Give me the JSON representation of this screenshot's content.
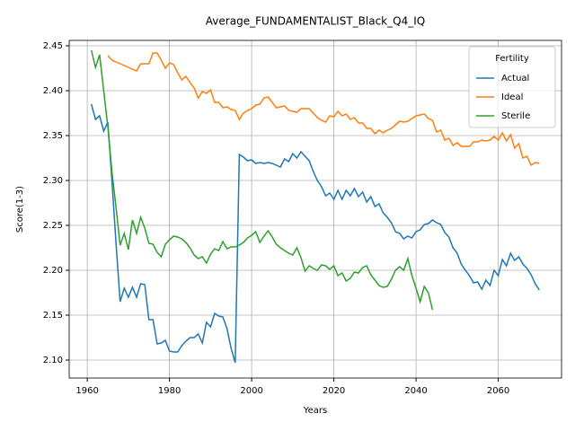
{
  "chart_data": {
    "type": "line",
    "title": "Average_FUNDAMENTALIST_Black_Q4_IQ",
    "xlabel": "Years",
    "ylabel": "Score(1-3)",
    "legend_title": "Fertility",
    "legend": "upper right",
    "grid": true,
    "x": [
      1961,
      1962,
      1963,
      1964,
      1965,
      1966,
      1967,
      1968,
      1969,
      1970,
      1971,
      1972,
      1973,
      1974,
      1975,
      1976,
      1977,
      1978,
      1979,
      1980,
      1981,
      1982,
      1983,
      1984,
      1985,
      1986,
      1987,
      1988,
      1989,
      1990,
      1991,
      1992,
      1993,
      1994,
      1995,
      1996,
      1997,
      1998,
      1999,
      2000,
      2001,
      2002,
      2003,
      2004,
      2005,
      2006,
      2007,
      2008,
      2009,
      2010,
      2011,
      2012,
      2013,
      2014,
      2015,
      2016,
      2017,
      2018,
      2019,
      2020,
      2021,
      2022,
      2023,
      2024,
      2025,
      2026,
      2027,
      2028,
      2029,
      2030,
      2031,
      2032,
      2033,
      2034,
      2035,
      2036,
      2037,
      2038,
      2039,
      2040,
      2041,
      2042,
      2043,
      2044,
      2045,
      2046,
      2047,
      2048,
      2049,
      2050,
      2051,
      2052,
      2053,
      2054,
      2055,
      2056,
      2057,
      2058,
      2059,
      2060,
      2061,
      2062,
      2063,
      2064,
      2065,
      2066,
      2067,
      2068,
      2069,
      2070
    ],
    "series": [
      {
        "name": "Actual",
        "color": "#1f77b4",
        "values": [
          2.385,
          2.368,
          2.372,
          2.355,
          2.365,
          2.3,
          2.23,
          2.165,
          2.18,
          2.17,
          2.181,
          2.17,
          2.185,
          2.184,
          2.145,
          2.145,
          2.118,
          2.119,
          2.122,
          2.11,
          2.109,
          2.109,
          2.116,
          2.121,
          2.125,
          2.125,
          2.129,
          2.119,
          2.142,
          2.137,
          2.152,
          2.149,
          2.148,
          2.135,
          2.113,
          2.097,
          2.329,
          2.326,
          2.322,
          2.323,
          2.319,
          2.32,
          2.319,
          2.32,
          2.319,
          2.317,
          2.315,
          2.324,
          2.321,
          2.33,
          2.325,
          2.332,
          2.327,
          2.322,
          2.31,
          2.3,
          2.293,
          2.283,
          2.286,
          2.279,
          2.289,
          2.279,
          2.289,
          2.283,
          2.291,
          2.282,
          2.287,
          2.276,
          2.282,
          2.271,
          2.274,
          2.264,
          2.259,
          2.253,
          2.243,
          2.241,
          2.235,
          2.238,
          2.236,
          2.243,
          2.245,
          2.251,
          2.252,
          2.256,
          2.253,
          2.251,
          2.242,
          2.237,
          2.225,
          2.219,
          2.207,
          2.2,
          2.194,
          2.186,
          2.187,
          2.179,
          2.189,
          2.183,
          2.2,
          2.194,
          2.212,
          2.205,
          2.219,
          2.211,
          2.215,
          2.207,
          2.202,
          2.195,
          2.185,
          2.178
        ]
      },
      {
        "name": "Ideal",
        "color": "#ff7f0e",
        "values": [
          null,
          null,
          null,
          null,
          2.439,
          2.434,
          2.432,
          2.43,
          2.428,
          2.426,
          2.424,
          2.422,
          2.43,
          2.43,
          2.43,
          2.442,
          2.442,
          2.434,
          2.425,
          2.431,
          2.429,
          2.42,
          2.412,
          2.416,
          2.409,
          2.403,
          2.392,
          2.399,
          2.397,
          2.401,
          2.387,
          2.387,
          2.381,
          2.382,
          2.379,
          2.378,
          2.368,
          2.375,
          2.378,
          2.38,
          2.384,
          2.385,
          2.392,
          2.393,
          2.387,
          2.381,
          2.382,
          2.383,
          2.378,
          2.377,
          2.376,
          2.38,
          2.38,
          2.38,
          2.375,
          2.37,
          2.367,
          2.365,
          2.372,
          2.371,
          2.377,
          2.372,
          2.374,
          2.368,
          2.37,
          2.364,
          2.364,
          2.358,
          2.358,
          2.352,
          2.356,
          2.353,
          2.356,
          2.358,
          2.362,
          2.366,
          2.365,
          2.366,
          2.369,
          2.372,
          2.373,
          2.374,
          2.369,
          2.367,
          2.354,
          2.356,
          2.345,
          2.347,
          2.339,
          2.342,
          2.338,
          2.338,
          2.338,
          2.343,
          2.343,
          2.345,
          2.344,
          2.345,
          2.349,
          2.345,
          2.353,
          2.344,
          2.351,
          2.336,
          2.341,
          2.325,
          2.327,
          2.317,
          2.32,
          2.319
        ]
      },
      {
        "name": "Sterile",
        "color": "#2ca02c",
        "values": [
          2.445,
          2.426,
          2.44,
          2.4,
          2.36,
          2.31,
          2.27,
          2.228,
          2.241,
          2.223,
          2.256,
          2.241,
          2.259,
          2.247,
          2.23,
          2.229,
          2.22,
          2.215,
          2.229,
          2.234,
          2.238,
          2.237,
          2.235,
          2.231,
          2.225,
          2.217,
          2.213,
          2.215,
          2.208,
          2.218,
          2.224,
          2.222,
          2.232,
          2.224,
          2.226,
          2.226,
          2.228,
          2.231,
          2.236,
          2.239,
          2.243,
          2.231,
          2.238,
          2.244,
          2.237,
          2.229,
          2.225,
          2.222,
          2.219,
          2.217,
          2.225,
          2.214,
          2.199,
          2.205,
          2.202,
          2.2,
          2.206,
          2.205,
          2.201,
          2.205,
          2.194,
          2.197,
          2.188,
          2.191,
          2.198,
          2.197,
          2.203,
          2.205,
          2.195,
          2.189,
          2.183,
          2.181,
          2.182,
          2.19,
          2.2,
          2.204,
          2.2,
          2.213,
          2.194,
          2.18,
          2.165,
          2.182,
          2.175,
          2.156,
          null,
          null,
          null,
          null,
          null,
          null,
          null,
          null,
          null,
          null,
          null,
          null,
          null,
          null,
          null,
          null,
          null,
          null,
          null,
          null,
          null,
          null,
          null,
          null,
          null,
          null
        ]
      }
    ],
    "xlim": [
      1955.6,
      2075.4
    ],
    "xticks": [
      1960,
      1980,
      2000,
      2020,
      2040,
      2060
    ],
    "ylim": [
      2.08,
      2.456
    ],
    "yticks": [
      {
        "value": 2.1,
        "label": "2.10"
      },
      2.15,
      {
        "value": 2.2,
        "label": "2.20"
      },
      2.25,
      {
        "value": 2.3,
        "label": "2.30"
      },
      2.35,
      {
        "value": 2.4,
        "label": "2.40"
      },
      2.45
    ]
  }
}
